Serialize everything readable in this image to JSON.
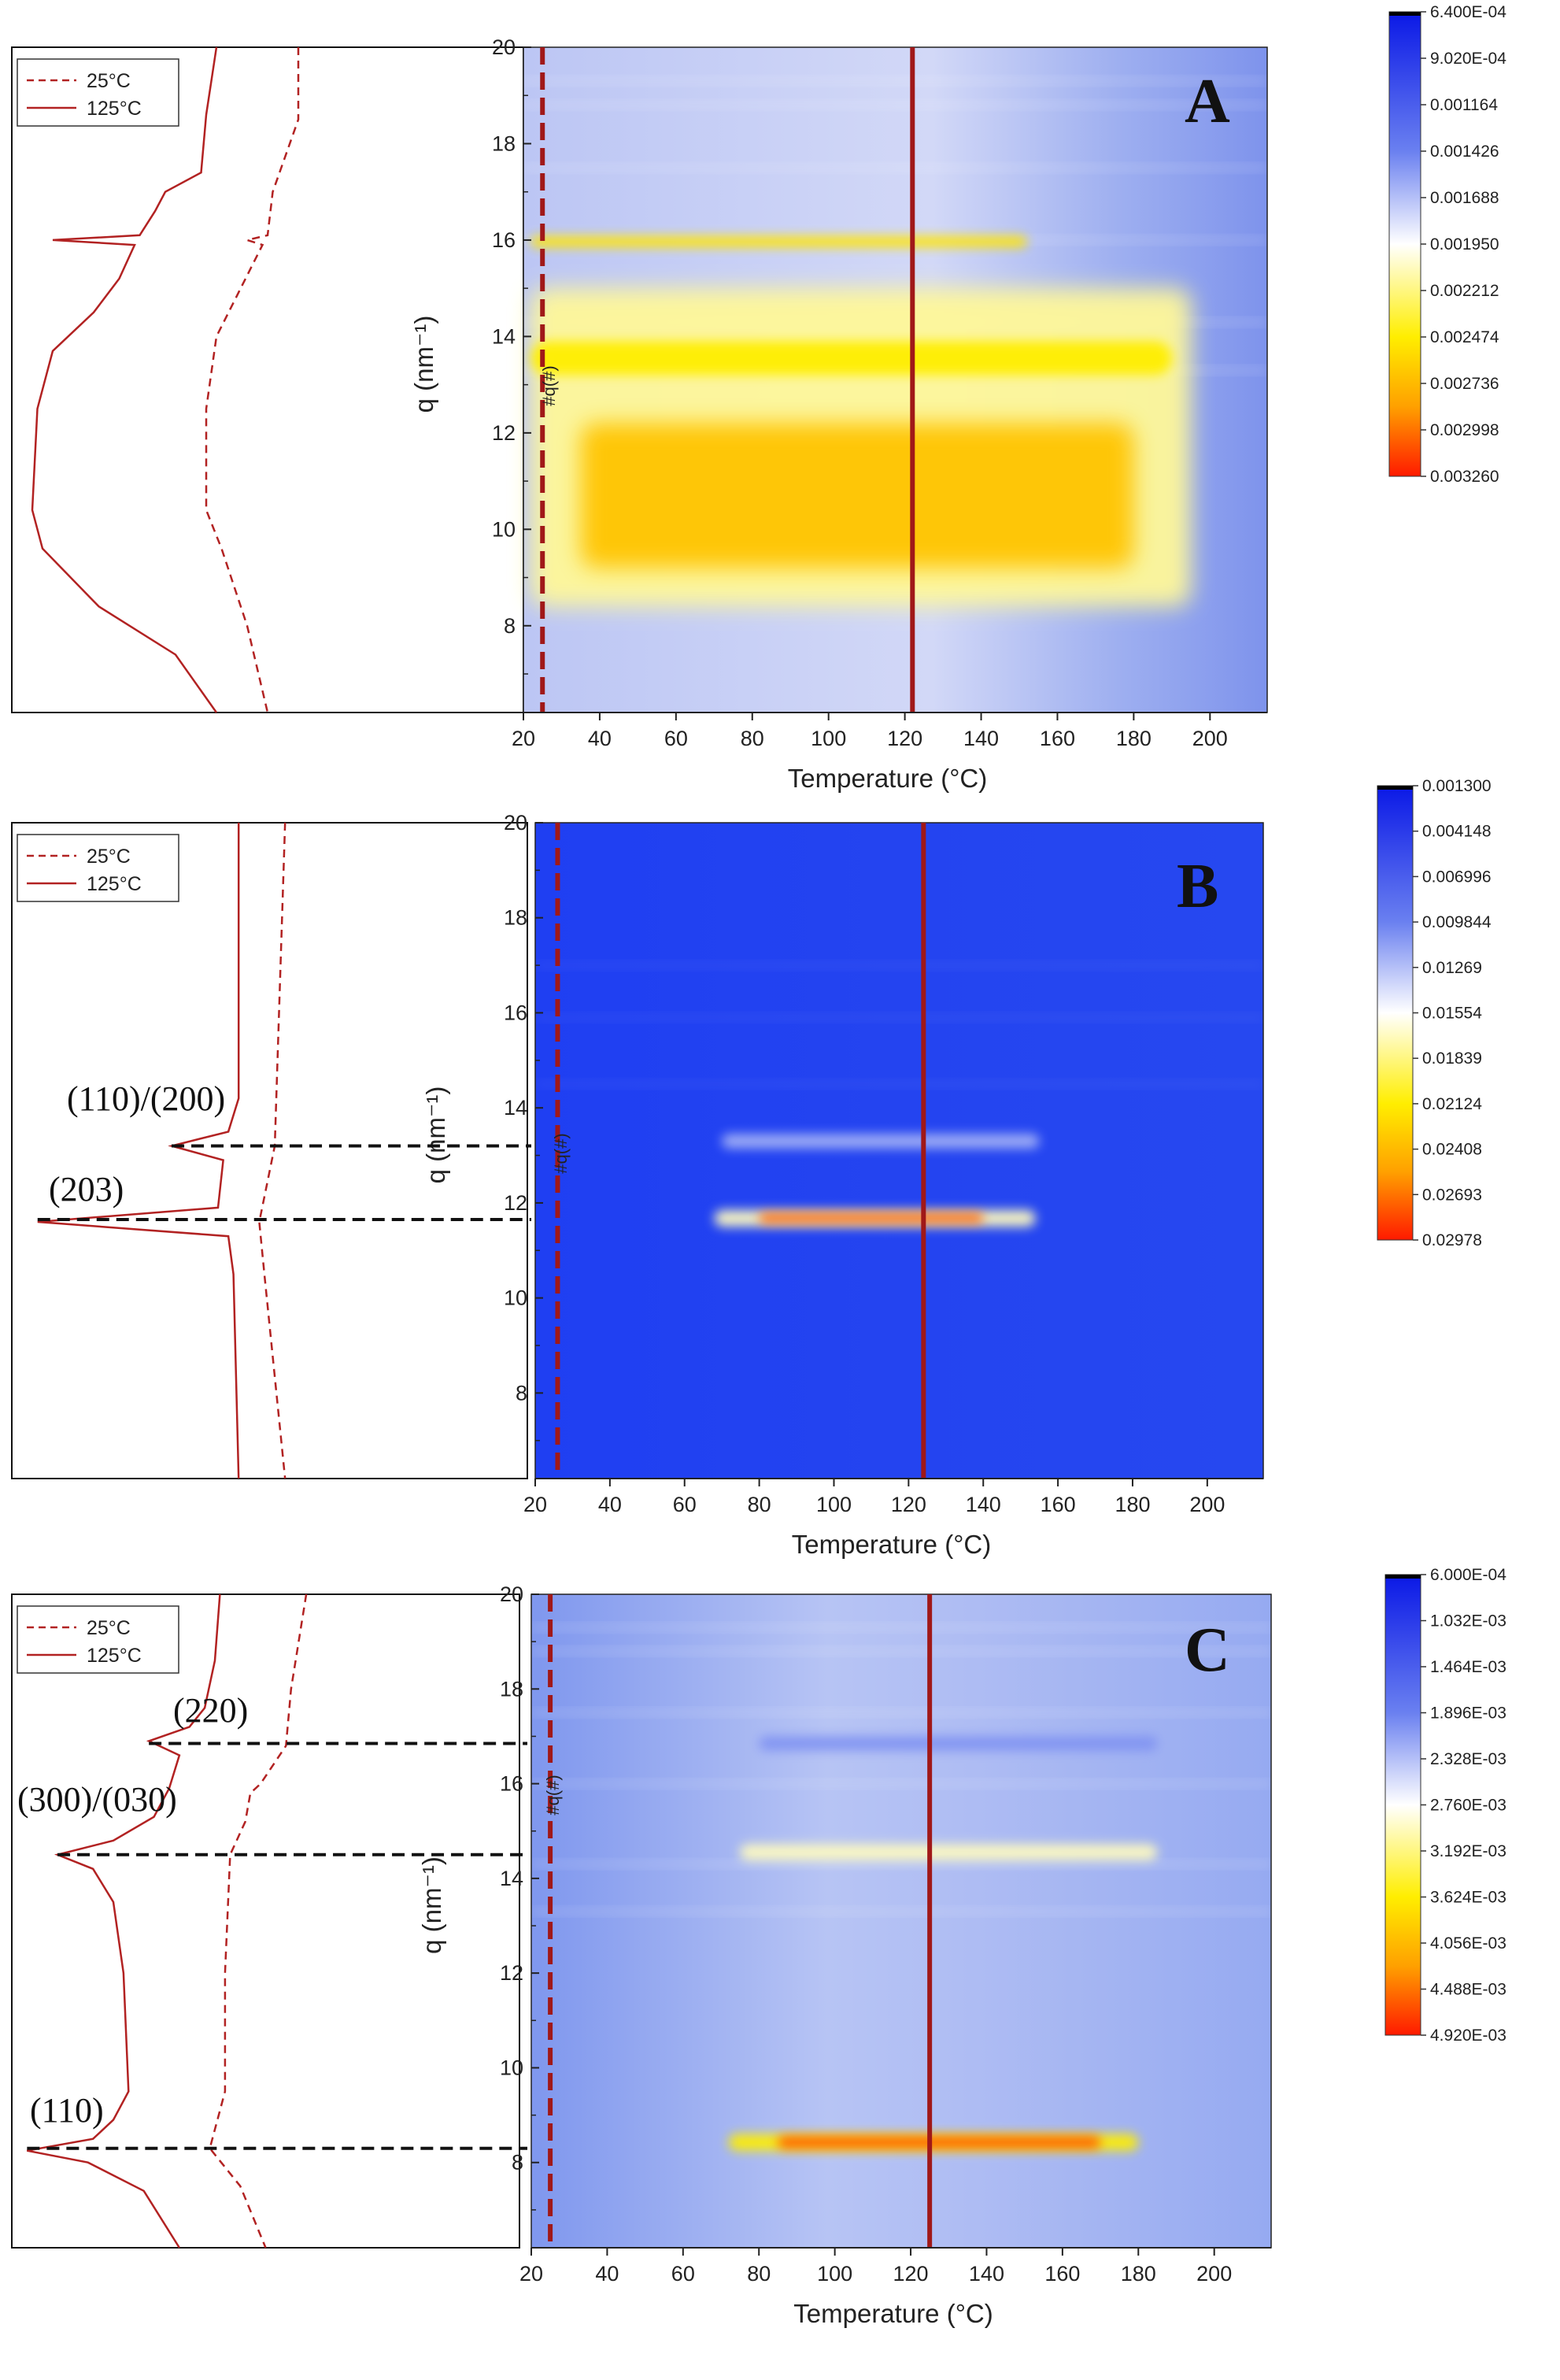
{
  "colors": {
    "profile": "#b22222",
    "marker_line": "#a01818",
    "guide": "#111111"
  },
  "chart_data": [
    {
      "type": "heatmap",
      "panel": "A",
      "xlabel": "Temperature (°C)",
      "ylabel": "q (nm⁻¹)",
      "xlim": [
        20,
        215
      ],
      "ylim": [
        6.2,
        20
      ],
      "xticks": [
        "20",
        "40",
        "60",
        "80",
        "100",
        "120",
        "140",
        "160",
        "180",
        "200"
      ],
      "yticks": [
        "8",
        "10",
        "12",
        "14",
        "16",
        "18",
        "20"
      ],
      "hash_label": "#q(#)",
      "dashed_marker_temperature": 25,
      "solid_marker_temperature": 122,
      "legend": [
        "25°C",
        "125°C"
      ],
      "colorbar": [
        "6.400E-04",
        "9.020E-04",
        "0.001164",
        "0.001426",
        "0.001688",
        "0.001950",
        "0.002212",
        "0.002474",
        "0.002736",
        "0.002998",
        "0.003260"
      ],
      "peak_labels": [],
      "features": [
        {
          "q_min": 8.4,
          "q_max": 15.0,
          "t_min": 22,
          "t_max": 195,
          "level": 0.58
        },
        {
          "q_min": 9.2,
          "q_max": 12.2,
          "t_min": 35,
          "t_max": 180,
          "level": 0.78
        },
        {
          "q_min": 13.2,
          "q_max": 13.9,
          "t_min": 22,
          "t_max": 190,
          "level": 0.7
        },
        {
          "q_min": 15.85,
          "q_max": 16.08,
          "t_min": 22,
          "t_max": 152,
          "level": 0.72
        }
      ],
      "profile_125": [
        [
          20,
          0.4
        ],
        [
          18.6,
          0.38
        ],
        [
          17.4,
          0.37
        ],
        [
          17.0,
          0.3
        ],
        [
          16.6,
          0.28
        ],
        [
          16.1,
          0.25
        ],
        [
          16.0,
          0.08
        ],
        [
          15.9,
          0.24
        ],
        [
          15.2,
          0.21
        ],
        [
          14.5,
          0.16
        ],
        [
          13.7,
          0.08
        ],
        [
          12.5,
          0.05
        ],
        [
          10.4,
          0.04
        ],
        [
          9.6,
          0.06
        ],
        [
          8.4,
          0.17
        ],
        [
          7.4,
          0.32
        ],
        [
          6.2,
          0.4
        ]
      ],
      "profile_25": [
        [
          20,
          0.56
        ],
        [
          18.5,
          0.56
        ],
        [
          17.0,
          0.51
        ],
        [
          16.1,
          0.5
        ],
        [
          16.0,
          0.46
        ],
        [
          15.9,
          0.49
        ],
        [
          14.0,
          0.4
        ],
        [
          12.5,
          0.38
        ],
        [
          10.4,
          0.38
        ],
        [
          9.6,
          0.41
        ],
        [
          8.0,
          0.46
        ],
        [
          6.2,
          0.5
        ]
      ],
      "guides": []
    },
    {
      "type": "heatmap",
      "panel": "B",
      "xlabel": "Temperature (°C)",
      "ylabel": "q (nm⁻¹)",
      "xlim": [
        20,
        215
      ],
      "ylim": [
        6.2,
        20
      ],
      "xticks": [
        "20",
        "40",
        "60",
        "80",
        "100",
        "120",
        "140",
        "160",
        "180",
        "200"
      ],
      "yticks": [
        "8",
        "10",
        "12",
        "14",
        "16",
        "18",
        "20"
      ],
      "hash_label": "#q(#)",
      "dashed_marker_temperature": 26,
      "solid_marker_temperature": 124,
      "legend": [
        "25°C",
        "125°C"
      ],
      "colorbar": [
        "0.001300",
        "0.004148",
        "0.006996",
        "0.009844",
        "0.01269",
        "0.01554",
        "0.01839",
        "0.02124",
        "0.02408",
        "0.02693",
        "0.02978"
      ],
      "peak_labels": [
        "(110)/(200)",
        "(203)"
      ],
      "features": [
        {
          "q_min": 13.15,
          "q_max": 13.45,
          "t_min": 70,
          "t_max": 155,
          "level": 0.38
        },
        {
          "q_min": 11.5,
          "q_max": 11.85,
          "t_min": 68,
          "t_max": 154,
          "level": 0.55
        },
        {
          "q_min": 11.58,
          "q_max": 11.78,
          "t_min": 80,
          "t_max": 140,
          "level": 0.92
        }
      ],
      "profile_125": [
        [
          20,
          0.44
        ],
        [
          14.2,
          0.44
        ],
        [
          13.5,
          0.42
        ],
        [
          13.2,
          0.31
        ],
        [
          12.9,
          0.41
        ],
        [
          11.9,
          0.4
        ],
        [
          11.6,
          0.05
        ],
        [
          11.3,
          0.42
        ],
        [
          10.5,
          0.43
        ],
        [
          6.2,
          0.44
        ]
      ],
      "profile_25": [
        [
          20,
          0.53
        ],
        [
          13.2,
          0.51
        ],
        [
          11.6,
          0.48
        ],
        [
          10.5,
          0.49
        ],
        [
          6.2,
          0.53
        ]
      ],
      "guides": [
        13.2,
        11.65
      ]
    },
    {
      "type": "heatmap",
      "panel": "C",
      "xlabel": "Temperature (°C)",
      "ylabel": "q (nm⁻¹)",
      "xlim": [
        20,
        215
      ],
      "ylim": [
        6.2,
        20
      ],
      "xticks": [
        "20",
        "40",
        "60",
        "80",
        "100",
        "120",
        "140",
        "160",
        "180",
        "200"
      ],
      "yticks": [
        "8",
        "10",
        "12",
        "14",
        "16",
        "18",
        "20"
      ],
      "hash_label": "#q(#)",
      "dashed_marker_temperature": 25,
      "solid_marker_temperature": 125,
      "legend": [
        "25°C",
        "125°C"
      ],
      "colorbar": [
        "6.000E-04",
        "1.032E-03",
        "1.464E-03",
        "1.896E-03",
        "2.328E-03",
        "2.760E-03",
        "3.192E-03",
        "3.624E-03",
        "4.056E-03",
        "4.488E-03",
        "4.920E-03"
      ],
      "peak_labels": [
        "(220)",
        "(300)/(030)",
        "(110)"
      ],
      "features": [
        {
          "q_min": 16.7,
          "q_max": 17.0,
          "t_min": 80,
          "t_max": 185,
          "level": 0.33
        },
        {
          "q_min": 14.38,
          "q_max": 14.72,
          "t_min": 75,
          "t_max": 185,
          "level": 0.55
        },
        {
          "q_min": 8.25,
          "q_max": 8.6,
          "t_min": 72,
          "t_max": 180,
          "level": 0.7
        },
        {
          "q_min": 8.3,
          "q_max": 8.55,
          "t_min": 85,
          "t_max": 170,
          "level": 0.93
        }
      ],
      "profile_125": [
        [
          20,
          0.41
        ],
        [
          18.6,
          0.4
        ],
        [
          17.6,
          0.38
        ],
        [
          17.2,
          0.35
        ],
        [
          16.9,
          0.27
        ],
        [
          16.6,
          0.33
        ],
        [
          15.9,
          0.31
        ],
        [
          15.3,
          0.28
        ],
        [
          14.8,
          0.2
        ],
        [
          14.5,
          0.09
        ],
        [
          14.2,
          0.16
        ],
        [
          13.5,
          0.2
        ],
        [
          12.0,
          0.22
        ],
        [
          9.5,
          0.23
        ],
        [
          8.9,
          0.2
        ],
        [
          8.5,
          0.16
        ],
        [
          8.25,
          0.03
        ],
        [
          8.0,
          0.15
        ],
        [
          7.4,
          0.26
        ],
        [
          6.2,
          0.33
        ]
      ],
      "profile_25": [
        [
          20,
          0.58
        ],
        [
          18.0,
          0.55
        ],
        [
          16.8,
          0.54
        ],
        [
          16.0,
          0.49
        ],
        [
          15.8,
          0.47
        ],
        [
          15.2,
          0.46
        ],
        [
          14.5,
          0.43
        ],
        [
          12.0,
          0.42
        ],
        [
          9.5,
          0.42
        ],
        [
          8.3,
          0.39
        ],
        [
          7.5,
          0.45
        ],
        [
          6.2,
          0.5
        ]
      ],
      "guides": [
        16.85,
        14.5,
        8.3
      ]
    }
  ]
}
